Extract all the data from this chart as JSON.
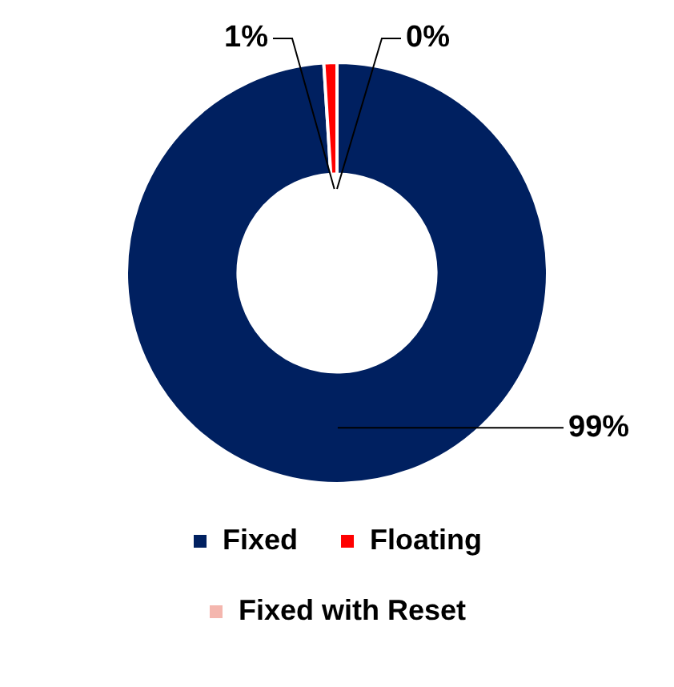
{
  "chart_data": {
    "type": "donut",
    "categories": [
      "Fixed",
      "Floating",
      "Fixed with Reset"
    ],
    "values": [
      99,
      1,
      0
    ],
    "colors": [
      "#002060",
      "#ff0000",
      "#f4b6ae"
    ],
    "value_labels": [
      "99%",
      "1%",
      "0%"
    ],
    "legend": "bottom"
  }
}
